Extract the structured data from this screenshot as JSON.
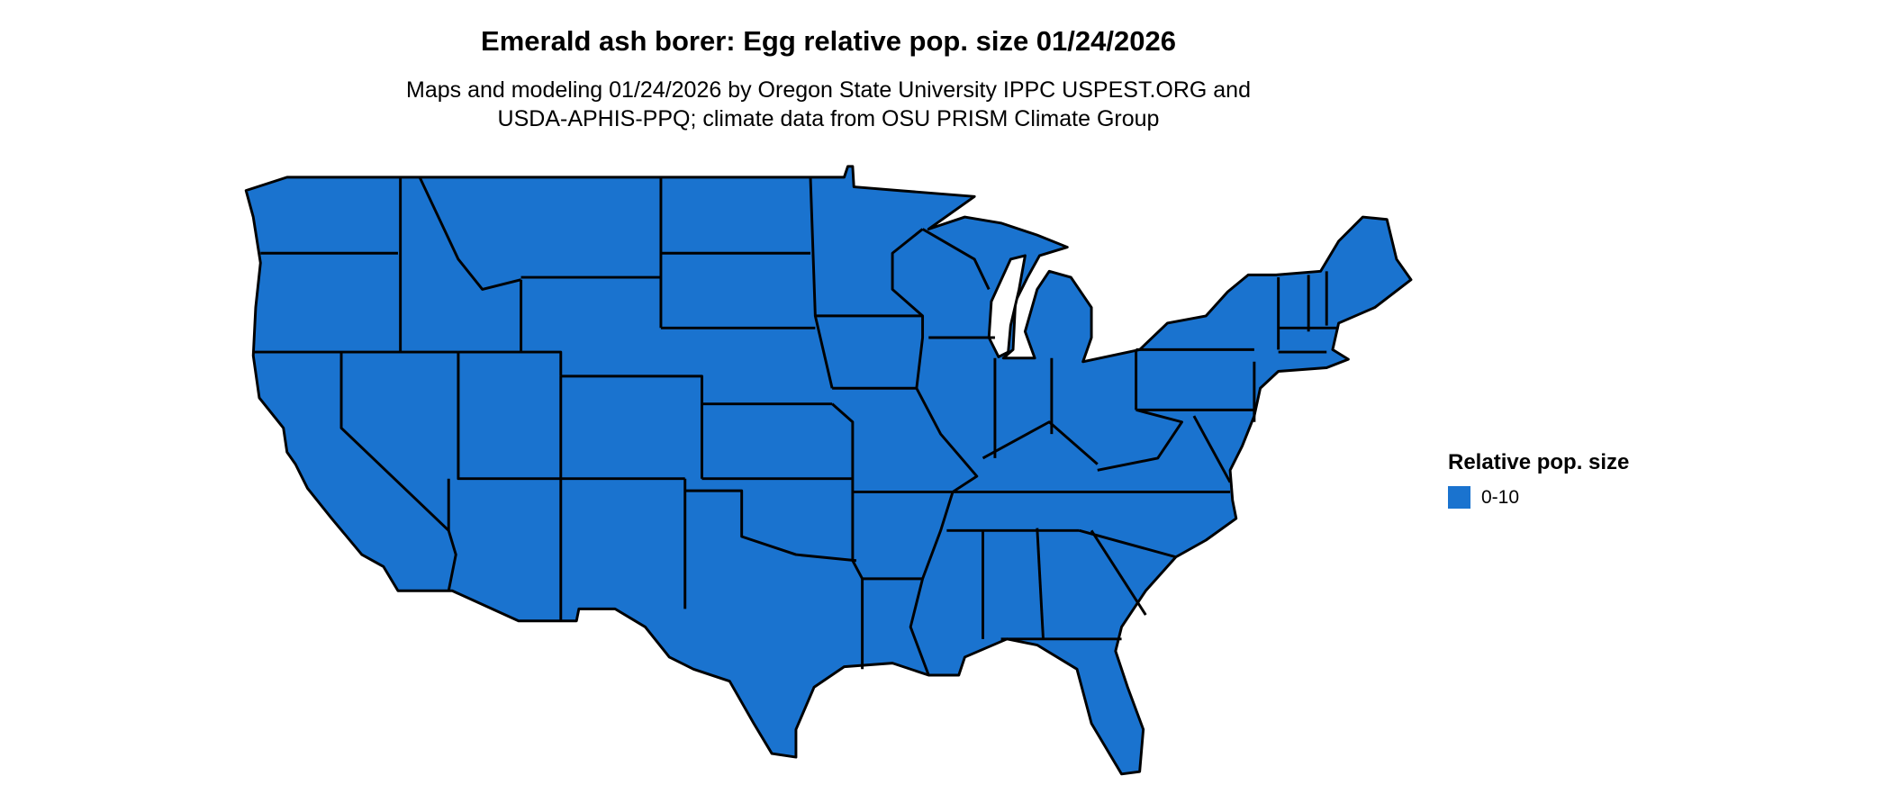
{
  "title": "Emerald ash borer: Egg relative pop. size 01/24/2026",
  "subtitle_line1": "Maps and modeling 01/24/2026 by Oregon State University IPPC USPEST.ORG and",
  "subtitle_line2": "USDA-APHIS-PPQ; climate data from OSU PRISM Climate Group",
  "map": {
    "region": "Contiguous United States",
    "fill_color": "#1a73cf",
    "border_color": "#000000",
    "category_shown": "0-10"
  },
  "legend": {
    "title": "Relative pop. size",
    "items": [
      {
        "label": "0-10",
        "color": "#1a73cf"
      }
    ]
  }
}
